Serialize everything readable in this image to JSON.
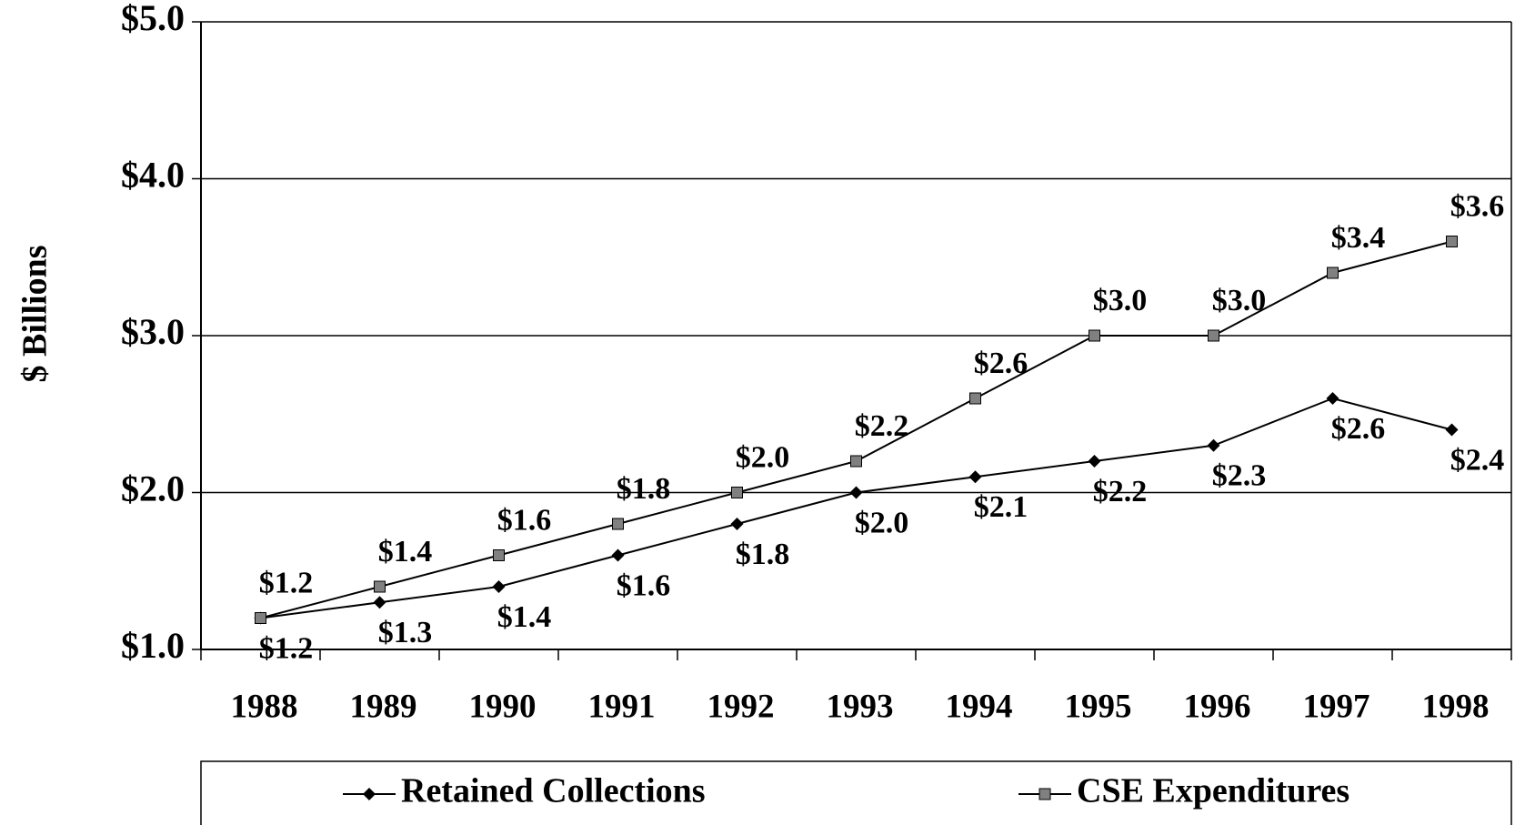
{
  "chart_data": {
    "type": "line",
    "y_label": "$ Billions",
    "categories": [
      "1988",
      "1989",
      "1990",
      "1991",
      "1992",
      "1993",
      "1994",
      "1995",
      "1996",
      "1997",
      "1998"
    ],
    "series": [
      {
        "name": "Retained Collections",
        "color": "#000000",
        "marker": "diamond",
        "values": [
          1.2,
          1.3,
          1.4,
          1.6,
          1.8,
          2.0,
          2.1,
          2.2,
          2.3,
          2.6,
          2.4
        ],
        "value_labels": [
          "$1.2",
          "$1.3",
          "$1.4",
          "$1.6",
          "$1.8",
          "$2.0",
          "$2.1",
          "$2.2",
          "$2.3",
          "$2.6",
          "$2.4"
        ]
      },
      {
        "name": "CSE Expenditures",
        "color": "#808080",
        "marker": "square",
        "values": [
          1.2,
          1.4,
          1.6,
          1.8,
          2.0,
          2.2,
          2.6,
          3.0,
          3.0,
          3.4,
          3.6
        ],
        "value_labels": [
          "$1.2",
          "$1.4",
          "$1.6",
          "$1.8",
          "$2.0",
          "$2.2",
          "$2.6",
          "$3.0",
          "$3.0",
          "$3.4",
          "$3.6"
        ]
      }
    ],
    "ylim": [
      1,
      5
    ],
    "yticks": [
      {
        "value": 1,
        "label": "$1.0"
      },
      {
        "value": 2,
        "label": "$2.0"
      },
      {
        "value": 3,
        "label": "$3.0"
      },
      {
        "value": 4,
        "label": "$4.0"
      },
      {
        "value": 5,
        "label": "$5.0"
      }
    ],
    "grid": true,
    "legend": "bottom"
  }
}
